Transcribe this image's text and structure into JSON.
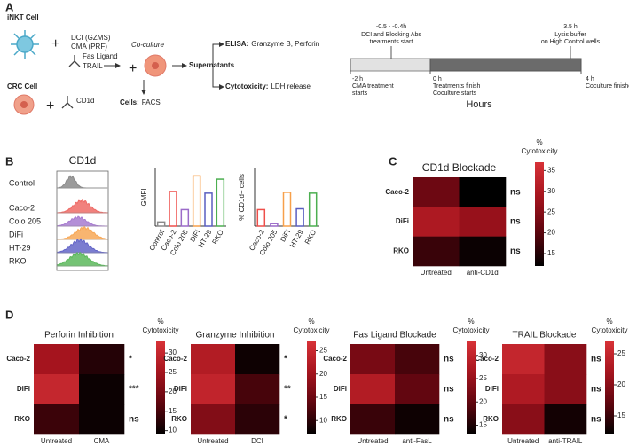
{
  "panel_labels": [
    "A",
    "B",
    "C",
    "D"
  ],
  "schematic": {
    "inkt_cell": "iNKT Cell",
    "inhibitors": [
      "DCI (GZMS)",
      "CMA (PRF)"
    ],
    "blocking_antibodies": [
      "Fas Ligand",
      "TRAIL"
    ],
    "crc_cell": "CRC Cell",
    "crc_antibody": "CD1d",
    "coculture": "Co-culture",
    "cells_label": "Cells:",
    "cells_method": "FACS",
    "supernatants": "Supernatants",
    "elisa_label": "ELISA:",
    "elisa_targets": "Granzyme B, Perforin",
    "cyto_label": "Cytotoxicity:",
    "cyto_method": "LDH release"
  },
  "timeline": {
    "axis_label": "Hours",
    "events": [
      {
        "time": "-2 h",
        "lines": [
          "CMA treatment",
          "starts"
        ]
      },
      {
        "time": "-0.5 - -0.4h",
        "lines": [
          "DCI and Blocking Abs",
          "treatments start"
        ]
      },
      {
        "time": "0 h",
        "lines": [
          "Treatments finish",
          "Coculture starts"
        ]
      },
      {
        "time": "3.5 h",
        "lines": [
          "Lysis buffer",
          "on High Control wells"
        ]
      },
      {
        "time": "4 h",
        "lines": [
          "Coculture finishes"
        ]
      }
    ]
  },
  "flow_histograms": {
    "title": "CD1d",
    "samples": [
      {
        "name": "Control",
        "color": "#8a8a8a"
      },
      {
        "name": "Caco-2",
        "color": "#ee6b66"
      },
      {
        "name": "Colo 205",
        "color": "#a77bd0"
      },
      {
        "name": "DiFi",
        "color": "#f7a857"
      },
      {
        "name": "HT-29",
        "color": "#6466c8"
      },
      {
        "name": "RKO",
        "color": "#5cb85c"
      }
    ]
  },
  "chart_data": [
    {
      "type": "bar",
      "y_label": "GMFI",
      "categories": [
        "Control",
        "Caco-2",
        "Colo 205",
        "DiFi",
        "HT-29",
        "RKO"
      ],
      "values": [
        5,
        42,
        20,
        61,
        40,
        57
      ],
      "colors": [
        "#8a8a8a",
        "#ee4f4a",
        "#9b6bc9",
        "#f7a04a",
        "#5a5fc0",
        "#4caf50"
      ],
      "ylim": [
        0,
        70
      ]
    },
    {
      "type": "bar",
      "y_label": "% CD1d+ cells",
      "categories": [
        "Caco-2",
        "Colo 205",
        "DiFi",
        "HT-29",
        "RKO"
      ],
      "values": [
        20,
        3,
        41,
        21,
        40
      ],
      "colors": [
        "#ee4f4a",
        "#9b6bc9",
        "#f7a04a",
        "#5a5fc0",
        "#4caf50"
      ],
      "ylim": [
        0,
        70
      ]
    },
    {
      "type": "heatmap",
      "title": "CD1d Blockade",
      "rows": [
        "Caco-2",
        "DiFi",
        "RKO"
      ],
      "columns": [
        "Untreated",
        "anti-CD1d"
      ],
      "values": [
        [
          22,
          12
        ],
        [
          30,
          27
        ],
        [
          17,
          13
        ]
      ],
      "significance": [
        "ns",
        "ns",
        "ns"
      ],
      "colorbar_title": [
        "%",
        "Cytotoxicity"
      ],
      "clim": [
        12,
        37
      ],
      "cticks": [
        15,
        20,
        25,
        30,
        35
      ]
    },
    {
      "type": "heatmap",
      "title": "Perforin Inhibition",
      "rows": [
        "Caco-2",
        "DiFi",
        "RKO"
      ],
      "columns": [
        "Untreated",
        "CMA"
      ],
      "values": [
        [
          25,
          12
        ],
        [
          30,
          10
        ],
        [
          14,
          10
        ]
      ],
      "significance": [
        "*",
        "***",
        "ns"
      ],
      "colorbar_title": [
        "%",
        "Cytotoxicity"
      ],
      "clim": [
        9,
        33
      ],
      "cticks": [
        10,
        15,
        20,
        25,
        30
      ]
    },
    {
      "type": "heatmap",
      "title": "Granzyme Inhibition",
      "rows": [
        "Caco-2",
        "DiFi",
        "RKO"
      ],
      "columns": [
        "Untreated",
        "DCI"
      ],
      "values": [
        [
          22,
          8
        ],
        [
          24,
          12
        ],
        [
          17,
          10
        ]
      ],
      "significance": [
        "*",
        "**",
        "*"
      ],
      "colorbar_title": [
        "%",
        "Cytotoxicity"
      ],
      "clim": [
        7,
        27
      ],
      "cticks": [
        10,
        15,
        20,
        25
      ]
    },
    {
      "type": "heatmap",
      "title": "Fas Ligand Blockade",
      "rows": [
        "Caco-2",
        "DiFi",
        "RKO"
      ],
      "columns": [
        "Untreated",
        "anti-FasL"
      ],
      "values": [
        [
          22,
          18
        ],
        [
          28,
          20
        ],
        [
          17,
          14
        ]
      ],
      "significance": [
        "ns",
        "ns",
        "ns"
      ],
      "colorbar_title": [
        "%",
        "Cytotoxicity"
      ],
      "clim": [
        13,
        33
      ],
      "cticks": [
        15,
        20,
        25,
        30
      ]
    },
    {
      "type": "heatmap",
      "title": "TRAIL Blockade",
      "rows": [
        "Caco-2",
        "DiFi",
        "RKO"
      ],
      "columns": [
        "Untreated",
        "anti-TRAIL"
      ],
      "values": [
        [
          25,
          20
        ],
        [
          23,
          20
        ],
        [
          20,
          13
        ]
      ],
      "significance": [
        "ns",
        "ns",
        "ns"
      ],
      "colorbar_title": [
        "%",
        "Cytotoxicity"
      ],
      "clim": [
        12,
        27
      ],
      "cticks": [
        15,
        20,
        25
      ]
    }
  ]
}
